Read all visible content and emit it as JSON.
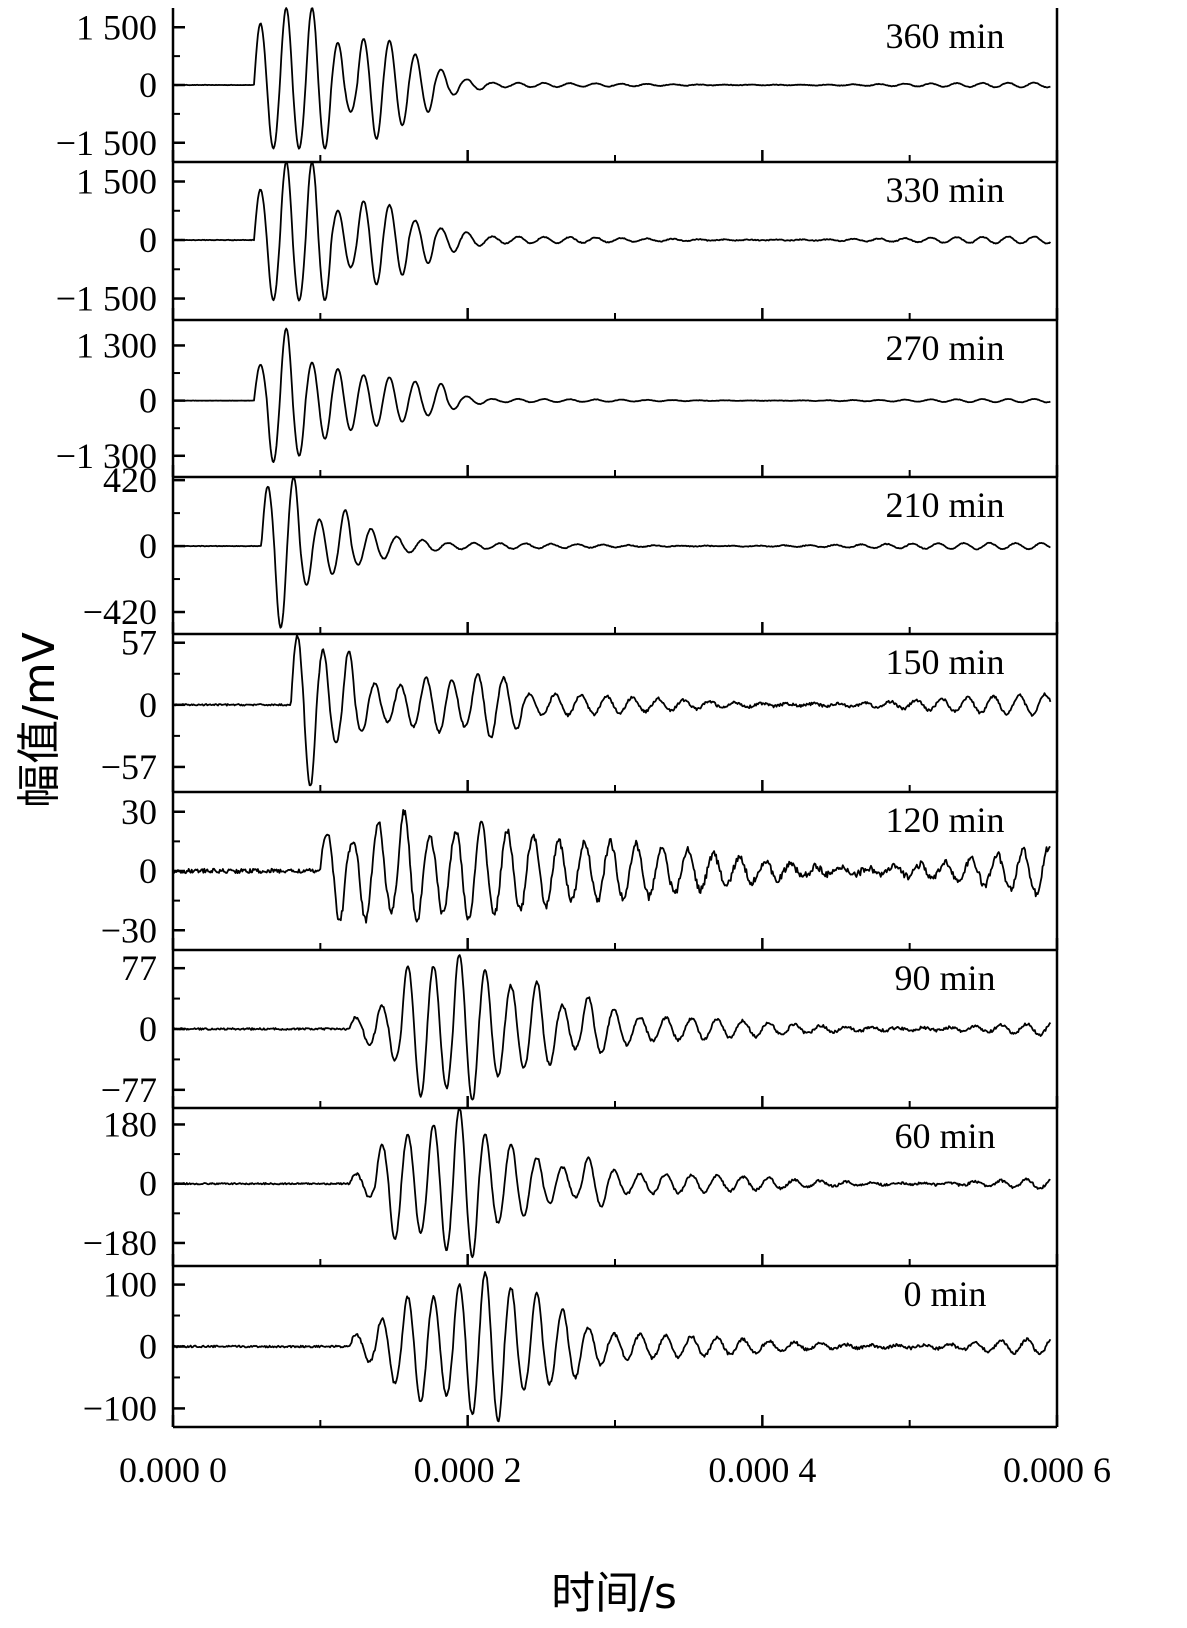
{
  "chart_data": {
    "type": "line",
    "xlabel": "时间/s",
    "ylabel": "幅值/mV",
    "xlim": [
      0,
      0.0006
    ],
    "x_ticks": [
      "0.000 0",
      "0.000 2",
      "0.000 4",
      "0.000 6"
    ],
    "panels": [
      {
        "label": "360 min",
        "yticks": [
          "1 500",
          "0",
          "−1 500"
        ],
        "amp": 1500,
        "ylim": [
          -2000,
          2000
        ],
        "onset": 5.5e-05,
        "peaks": [
          1600,
          -1650,
          2000,
          -1650,
          2000,
          -1650,
          1100,
          -700,
          1200,
          -1400,
          1150,
          -1050,
          800,
          -700,
          400,
          -250,
          150,
          -120
        ],
        "tail": 60
      },
      {
        "label": "330 min",
        "yticks": [
          "1 500",
          "0",
          "−1 500"
        ],
        "amp": 1500,
        "ylim": [
          -2050,
          2000
        ],
        "onset": 5.5e-05,
        "peaks": [
          1300,
          -1550,
          2000,
          -1550,
          2000,
          -1550,
          750,
          -700,
          1000,
          -1150,
          900,
          -900,
          500,
          -600,
          300,
          -300,
          200,
          -150
        ],
        "tail": 90
      },
      {
        "label": "270 min",
        "yticks": [
          "1 300",
          "0",
          "−1 300"
        ],
        "amp": 1300,
        "ylim": [
          -1800,
          1900
        ],
        "onset": 5.5e-05,
        "peaks": [
          850,
          -1450,
          1700,
          -1300,
          900,
          -900,
          750,
          -700,
          600,
          -600,
          550,
          -500,
          450,
          -350,
          400,
          -200,
          100,
          -80
        ],
        "tail": 40
      },
      {
        "label": "210 min",
        "yticks": [
          "420",
          "0",
          "−420"
        ],
        "amp": 420,
        "ylim": [
          -560,
          440
        ],
        "onset": 6e-05,
        "peaks": [
          380,
          -520,
          440,
          -250,
          170,
          -180,
          230,
          -120,
          110,
          -80,
          60,
          -40,
          40,
          -30
        ],
        "tail": 20
      },
      {
        "label": "150 min",
        "yticks": [
          "57",
          "0",
          "−57"
        ],
        "amp": 57,
        "ylim": [
          -80,
          65
        ],
        "onset": 8e-05,
        "peaks": [
          63,
          -75,
          50,
          -35,
          50,
          -25,
          20,
          -15,
          18,
          -20,
          25,
          -25,
          22,
          -20,
          28,
          -30,
          25,
          -22
        ],
        "tail": 10
      },
      {
        "label": "120 min",
        "yticks": [
          "30",
          "0",
          "−30"
        ],
        "amp": 30,
        "ylim": [
          -40,
          40
        ],
        "onset": 0.0001,
        "peaks": [
          20,
          -25,
          15,
          -25,
          25,
          -20,
          30,
          -25,
          18,
          -22,
          20,
          -25,
          24,
          -22,
          20,
          -20,
          18,
          -18,
          15,
          -15
        ],
        "tail": 15
      },
      {
        "label": "90 min",
        "yticks": [
          "77",
          "0",
          "−77"
        ],
        "amp": 77,
        "ylim": [
          -100,
          100
        ],
        "onset": 0.00012,
        "peaks": [
          15,
          -20,
          30,
          -40,
          80,
          -85,
          80,
          -75,
          95,
          -90,
          75,
          -60,
          55,
          -50,
          60,
          -45,
          30,
          -25,
          40,
          -30,
          25,
          -20
        ],
        "tail": 15
      },
      {
        "label": "60 min",
        "yticks": [
          "180",
          "0",
          "−180"
        ],
        "amp": 180,
        "ylim": [
          -250,
          230
        ],
        "onset": 0.00012,
        "peaks": [
          30,
          -40,
          120,
          -170,
          150,
          -150,
          180,
          -200,
          230,
          -220,
          150,
          -120,
          120,
          -100,
          80,
          -60,
          50,
          -40,
          80,
          -70,
          40,
          -30
        ],
        "tail": 30
      },
      {
        "label": "0 min",
        "yticks": [
          "100",
          "0",
          "−100"
        ],
        "amp": 100,
        "ylim": [
          -130,
          130
        ],
        "onset": 0.00012,
        "peaks": [
          20,
          -25,
          45,
          -60,
          80,
          -90,
          80,
          -80,
          100,
          -110,
          120,
          -120,
          95,
          -70,
          85,
          -60,
          60,
          -50,
          30,
          -30
        ],
        "tail": 20
      }
    ]
  }
}
